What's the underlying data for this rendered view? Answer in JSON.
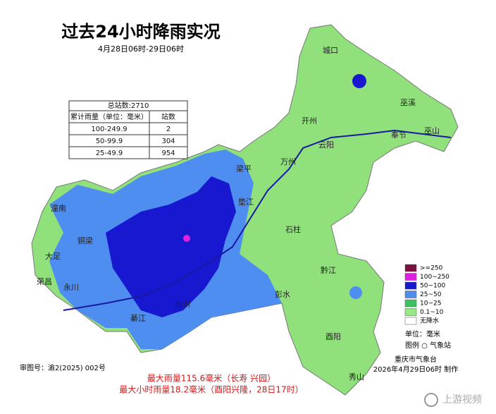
{
  "map": {
    "title": "过去24小时降雨实况",
    "subtitle": "4月28日06时-29日06时",
    "table": {
      "caption": "总站数:2710",
      "header": [
        "累计雨量（单位：毫米）",
        "站数"
      ],
      "rows": [
        [
          "100-249.9",
          "2"
        ],
        [
          "50-99.9",
          "304"
        ],
        [
          "25-49.9",
          "954"
        ]
      ]
    },
    "legend": [
      {
        "label": ">=250",
        "color": "#7a1040"
      },
      {
        "label": "100~250",
        "color": "#e020e0"
      },
      {
        "label": "50~100",
        "color": "#1818d0"
      },
      {
        "label": "25~50",
        "color": "#4e8ef0"
      },
      {
        "label": "10~25",
        "color": "#3cc060"
      },
      {
        "label": "0.1~10",
        "color": "#98e888"
      },
      {
        "label": "无降水",
        "color": "#ffffff"
      }
    ],
    "unit": "单位：毫米",
    "legend_station": "图例 ○ 气象站",
    "places": [
      "城口",
      "巫溪",
      "巫山",
      "奉节",
      "开州",
      "云阳",
      "万州",
      "梁平",
      "垫江",
      "石柱",
      "潼南",
      "大足",
      "铜梁",
      "荣昌",
      "永川",
      "南川",
      "綦江",
      "彭水",
      "黔江",
      "酉阳",
      "秀山"
    ],
    "approval": "审图号：渝2(2025) 002号",
    "max_rain": "最大雨量115.6毫米（长寿 兴园）",
    "max_hourly": "最大小时雨量18.2毫米（酉阳兴隆，28日17时）",
    "issuer": "重庆市气象台",
    "issued": "2026年4月29日06时 制作",
    "watermark": "上游视频"
  }
}
